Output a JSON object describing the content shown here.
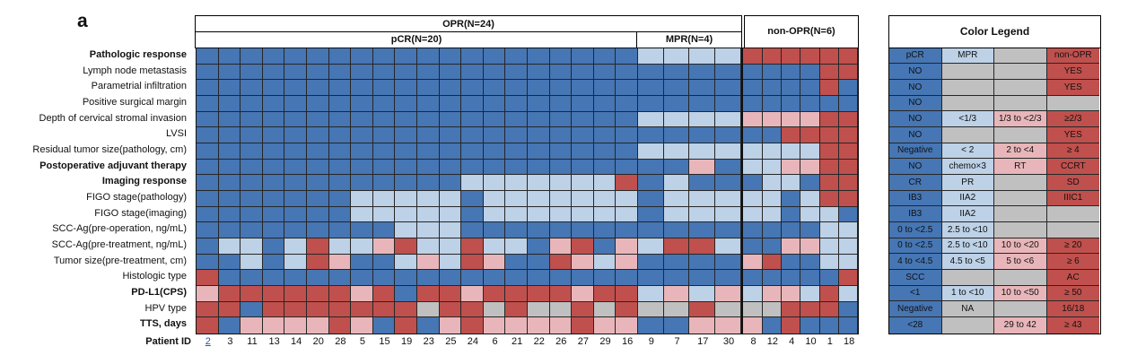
{
  "chart_data": {
    "type": "heatmap",
    "figure_label": "a",
    "headers": {
      "opr": "OPR(N=24)",
      "pcr": "pCR(N=20)",
      "mpr": "MPR(N=4)",
      "non_opr": "non-OPR(N=6)"
    },
    "colors": {
      "B": "#4676b4",
      "LB": "#bdd1e7",
      "P": "#e8b6ba",
      "R": "#c0504d",
      "G": "#c0c0c0",
      "patient_link": "#2b57a7"
    },
    "rows": [
      {
        "label": "Pathologic response",
        "bold": true,
        "cells": [
          "B",
          "B",
          "B",
          "B",
          "B",
          "B",
          "B",
          "B",
          "B",
          "B",
          "B",
          "B",
          "B",
          "B",
          "B",
          "B",
          "B",
          "B",
          "B",
          "B",
          "LB",
          "LB",
          "LB",
          "LB",
          "R",
          "R",
          "R",
          "R",
          "R",
          "R"
        ]
      },
      {
        "label": "Lymph node metastasis",
        "bold": false,
        "cells": [
          "B",
          "B",
          "B",
          "B",
          "B",
          "B",
          "B",
          "B",
          "B",
          "B",
          "B",
          "B",
          "B",
          "B",
          "B",
          "B",
          "B",
          "B",
          "B",
          "B",
          "B",
          "B",
          "B",
          "B",
          "B",
          "B",
          "B",
          "B",
          "R",
          "R"
        ]
      },
      {
        "label": "Parametrial infiltration",
        "bold": false,
        "cells": [
          "B",
          "B",
          "B",
          "B",
          "B",
          "B",
          "B",
          "B",
          "B",
          "B",
          "B",
          "B",
          "B",
          "B",
          "B",
          "B",
          "B",
          "B",
          "B",
          "B",
          "B",
          "B",
          "B",
          "B",
          "B",
          "B",
          "B",
          "B",
          "R",
          "B"
        ]
      },
      {
        "label": "Positive surgical margin",
        "bold": false,
        "cells": [
          "B",
          "B",
          "B",
          "B",
          "B",
          "B",
          "B",
          "B",
          "B",
          "B",
          "B",
          "B",
          "B",
          "B",
          "B",
          "B",
          "B",
          "B",
          "B",
          "B",
          "B",
          "B",
          "B",
          "B",
          "B",
          "B",
          "B",
          "B",
          "B",
          "B"
        ]
      },
      {
        "label": "Depth of cervical stromal invasion",
        "bold": false,
        "cells": [
          "B",
          "B",
          "B",
          "B",
          "B",
          "B",
          "B",
          "B",
          "B",
          "B",
          "B",
          "B",
          "B",
          "B",
          "B",
          "B",
          "B",
          "B",
          "B",
          "B",
          "LB",
          "LB",
          "LB",
          "LB",
          "P",
          "P",
          "P",
          "P",
          "R",
          "R"
        ]
      },
      {
        "label": "LVSI",
        "bold": false,
        "cells": [
          "B",
          "B",
          "B",
          "B",
          "B",
          "B",
          "B",
          "B",
          "B",
          "B",
          "B",
          "B",
          "B",
          "B",
          "B",
          "B",
          "B",
          "B",
          "B",
          "B",
          "B",
          "B",
          "B",
          "B",
          "B",
          "B",
          "R",
          "R",
          "R",
          "R"
        ]
      },
      {
        "label": "Residual tumor size(pathology, cm)",
        "bold": false,
        "cells": [
          "B",
          "B",
          "B",
          "B",
          "B",
          "B",
          "B",
          "B",
          "B",
          "B",
          "B",
          "B",
          "B",
          "B",
          "B",
          "B",
          "B",
          "B",
          "B",
          "B",
          "LB",
          "LB",
          "LB",
          "LB",
          "LB",
          "LB",
          "LB",
          "LB",
          "R",
          "R"
        ]
      },
      {
        "label": "Postoperative adjuvant therapy",
        "bold": true,
        "cells": [
          "B",
          "B",
          "B",
          "B",
          "B",
          "B",
          "B",
          "B",
          "B",
          "B",
          "B",
          "B",
          "B",
          "B",
          "B",
          "B",
          "B",
          "B",
          "B",
          "B",
          "B",
          "B",
          "P",
          "B",
          "LB",
          "LB",
          "P",
          "P",
          "R",
          "R"
        ]
      },
      {
        "label": "Imaging response",
        "bold": true,
        "cells": [
          "B",
          "B",
          "B",
          "B",
          "B",
          "B",
          "B",
          "B",
          "B",
          "B",
          "B",
          "B",
          "LB",
          "LB",
          "LB",
          "LB",
          "LB",
          "LB",
          "LB",
          "R",
          "B",
          "LB",
          "B",
          "B",
          "B",
          "LB",
          "LB",
          "B",
          "R",
          "R"
        ]
      },
      {
        "label": "FIGO stage(pathology)",
        "bold": false,
        "cells": [
          "B",
          "B",
          "B",
          "B",
          "B",
          "B",
          "B",
          "LB",
          "LB",
          "LB",
          "LB",
          "LB",
          "B",
          "LB",
          "LB",
          "LB",
          "LB",
          "LB",
          "LB",
          "LB",
          "B",
          "LB",
          "LB",
          "LB",
          "LB",
          "LB",
          "B",
          "LB",
          "R",
          "R"
        ]
      },
      {
        "label": "FIGO stage(imaging)",
        "bold": false,
        "cells": [
          "B",
          "B",
          "B",
          "B",
          "B",
          "B",
          "B",
          "LB",
          "LB",
          "LB",
          "LB",
          "LB",
          "B",
          "LB",
          "LB",
          "LB",
          "LB",
          "LB",
          "LB",
          "LB",
          "B",
          "LB",
          "LB",
          "LB",
          "LB",
          "LB",
          "B",
          "LB",
          "LB",
          "B"
        ]
      },
      {
        "label": "SCC-Ag(pre-operation, ng/mL)",
        "bold": false,
        "cells": [
          "B",
          "B",
          "B",
          "B",
          "B",
          "B",
          "B",
          "B",
          "B",
          "LB",
          "LB",
          "LB",
          "B",
          "B",
          "B",
          "B",
          "B",
          "B",
          "B",
          "B",
          "B",
          "B",
          "B",
          "B",
          "B",
          "B",
          "B",
          "B",
          "LB",
          "LB"
        ]
      },
      {
        "label": "SCC-Ag(pre-treatment, ng/mL)",
        "bold": false,
        "cells": [
          "B",
          "LB",
          "LB",
          "B",
          "LB",
          "R",
          "LB",
          "LB",
          "P",
          "R",
          "LB",
          "LB",
          "R",
          "LB",
          "LB",
          "B",
          "P",
          "R",
          "B",
          "P",
          "LB",
          "R",
          "R",
          "LB",
          "B",
          "B",
          "P",
          "P",
          "LB",
          "LB"
        ]
      },
      {
        "label": "Tumor size(pre-treatment, cm)",
        "bold": false,
        "cells": [
          "B",
          "B",
          "LB",
          "B",
          "LB",
          "R",
          "P",
          "B",
          "B",
          "LB",
          "P",
          "LB",
          "R",
          "P",
          "B",
          "B",
          "R",
          "P",
          "LB",
          "P",
          "B",
          "B",
          "B",
          "B",
          "P",
          "R",
          "B",
          "B",
          "LB",
          "LB"
        ]
      },
      {
        "label": "Histologic type",
        "bold": false,
        "cells": [
          "R",
          "B",
          "B",
          "B",
          "B",
          "B",
          "B",
          "B",
          "B",
          "B",
          "B",
          "B",
          "B",
          "B",
          "B",
          "B",
          "B",
          "B",
          "B",
          "B",
          "B",
          "B",
          "B",
          "B",
          "B",
          "B",
          "B",
          "B",
          "B",
          "R"
        ]
      },
      {
        "label": "PD-L1(CPS)",
        "bold": true,
        "cells": [
          "P",
          "R",
          "R",
          "R",
          "R",
          "R",
          "R",
          "P",
          "R",
          "B",
          "R",
          "R",
          "P",
          "R",
          "R",
          "R",
          "R",
          "P",
          "R",
          "R",
          "LB",
          "P",
          "LB",
          "P",
          "LB",
          "P",
          "P",
          "LB",
          "R",
          "LB"
        ]
      },
      {
        "label": "HPV type",
        "bold": false,
        "cells": [
          "R",
          "R",
          "B",
          "R",
          "R",
          "R",
          "R",
          "R",
          "R",
          "R",
          "G",
          "R",
          "R",
          "G",
          "R",
          "G",
          "G",
          "R",
          "G",
          "R",
          "G",
          "G",
          "R",
          "G",
          "G",
          "G",
          "R",
          "R",
          "R",
          "B"
        ]
      },
      {
        "label": "TTS, days",
        "bold": true,
        "cells": [
          "R",
          "B",
          "P",
          "P",
          "P",
          "P",
          "R",
          "P",
          "B",
          "R",
          "B",
          "P",
          "R",
          "P",
          "P",
          "P",
          "P",
          "R",
          "P",
          "P",
          "B",
          "B",
          "P",
          "P",
          "P",
          "B",
          "R",
          "B",
          "B",
          "B"
        ]
      }
    ],
    "patient_row_label": "Patient ID",
    "patient_ids": [
      "2",
      "3",
      "11",
      "13",
      "14",
      "20",
      "28",
      "5",
      "15",
      "19",
      "23",
      "25",
      "24",
      "6",
      "21",
      "22",
      "26",
      "27",
      "29",
      "16",
      "9",
      "7",
      "17",
      "30",
      "8",
      "12",
      "4",
      "10",
      "1",
      "18"
    ],
    "linked_patient_ids": [
      "2"
    ],
    "legend": {
      "title": "Color Legend",
      "rows": [
        [
          {
            "c": "B",
            "t": "pCR"
          },
          {
            "c": "LB",
            "t": "MPR"
          },
          {
            "c": "G",
            "t": ""
          },
          {
            "c": "R",
            "t": "non-OPR"
          }
        ],
        [
          {
            "c": "B",
            "t": "NO"
          },
          {
            "c": "G",
            "t": ""
          },
          {
            "c": "G",
            "t": ""
          },
          {
            "c": "R",
            "t": "YES"
          }
        ],
        [
          {
            "c": "B",
            "t": "NO"
          },
          {
            "c": "G",
            "t": ""
          },
          {
            "c": "G",
            "t": ""
          },
          {
            "c": "R",
            "t": "YES"
          }
        ],
        [
          {
            "c": "B",
            "t": "NO"
          },
          {
            "c": "G",
            "t": ""
          },
          {
            "c": "G",
            "t": ""
          },
          {
            "c": "G",
            "t": ""
          }
        ],
        [
          {
            "c": "B",
            "t": "NO"
          },
          {
            "c": "LB",
            "t": "<1/3"
          },
          {
            "c": "P",
            "t": "1/3 to <2/3"
          },
          {
            "c": "R",
            "t": "≥2/3"
          }
        ],
        [
          {
            "c": "B",
            "t": "NO"
          },
          {
            "c": "G",
            "t": ""
          },
          {
            "c": "G",
            "t": ""
          },
          {
            "c": "R",
            "t": "YES"
          }
        ],
        [
          {
            "c": "B",
            "t": "Negative"
          },
          {
            "c": "LB",
            "t": "< 2"
          },
          {
            "c": "P",
            "t": "2 to <4"
          },
          {
            "c": "R",
            "t": "≥ 4"
          }
        ],
        [
          {
            "c": "B",
            "t": "NO"
          },
          {
            "c": "LB",
            "t": "chemo×3"
          },
          {
            "c": "P",
            "t": "RT"
          },
          {
            "c": "R",
            "t": "CCRT"
          }
        ],
        [
          {
            "c": "B",
            "t": "CR"
          },
          {
            "c": "LB",
            "t": "PR"
          },
          {
            "c": "G",
            "t": ""
          },
          {
            "c": "R",
            "t": "SD"
          }
        ],
        [
          {
            "c": "B",
            "t": "IB3"
          },
          {
            "c": "LB",
            "t": "IIA2"
          },
          {
            "c": "G",
            "t": ""
          },
          {
            "c": "R",
            "t": "IIIC1"
          }
        ],
        [
          {
            "c": "B",
            "t": "IB3"
          },
          {
            "c": "LB",
            "t": "IIA2"
          },
          {
            "c": "G",
            "t": ""
          },
          {
            "c": "G",
            "t": ""
          }
        ],
        [
          {
            "c": "B",
            "t": "0 to <2.5"
          },
          {
            "c": "LB",
            "t": "2.5 to <10"
          },
          {
            "c": "G",
            "t": ""
          },
          {
            "c": "G",
            "t": ""
          }
        ],
        [
          {
            "c": "B",
            "t": "0 to <2.5"
          },
          {
            "c": "LB",
            "t": "2.5 to <10"
          },
          {
            "c": "P",
            "t": "10 to <20"
          },
          {
            "c": "R",
            "t": "≥ 20"
          }
        ],
        [
          {
            "c": "B",
            "t": "4 to <4.5"
          },
          {
            "c": "LB",
            "t": "4.5 to <5"
          },
          {
            "c": "P",
            "t": "5 to <6"
          },
          {
            "c": "R",
            "t": "≥ 6"
          }
        ],
        [
          {
            "c": "B",
            "t": "SCC"
          },
          {
            "c": "G",
            "t": ""
          },
          {
            "c": "G",
            "t": ""
          },
          {
            "c": "R",
            "t": "AC"
          }
        ],
        [
          {
            "c": "B",
            "t": "<1"
          },
          {
            "c": "LB",
            "t": "1 to <10"
          },
          {
            "c": "P",
            "t": "10 to <50"
          },
          {
            "c": "R",
            "t": "≥ 50"
          }
        ],
        [
          {
            "c": "B",
            "t": "Negative"
          },
          {
            "c": "G",
            "t": "NA"
          },
          {
            "c": "G",
            "t": ""
          },
          {
            "c": "R",
            "t": "16/18"
          }
        ],
        [
          {
            "c": "B",
            "t": "<28"
          },
          {
            "c": "G",
            "t": ""
          },
          {
            "c": "P",
            "t": "29 to 42"
          },
          {
            "c": "R",
            "t": "≥ 43"
          }
        ]
      ]
    }
  }
}
